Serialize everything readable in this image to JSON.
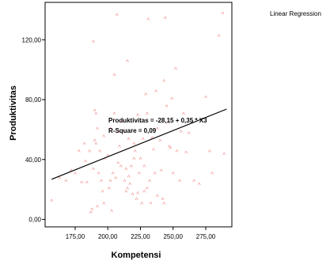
{
  "chart_data": {
    "type": "scatter",
    "xlabel": "Kompetensi",
    "ylabel": "Produktivitas",
    "legend": "Linear Regression",
    "xlim": [
      152,
      295
    ],
    "ylim": [
      -5,
      145
    ],
    "xticks": [
      175,
      200,
      225,
      250,
      275
    ],
    "xtick_labels": [
      "175,00",
      "200,00",
      "225,00",
      "250,00",
      "275,00"
    ],
    "yticks": [
      0,
      40,
      80,
      120
    ],
    "ytick_labels": [
      "0,00",
      "40,00",
      "80,00",
      "120,00"
    ],
    "regression": {
      "intercept": -28.15,
      "slope": 0.35,
      "x_range": [
        157,
        291
      ]
    },
    "annotation_line1": "Produktivitas = -28,15 + 0,35 * X3",
    "annotation_line2": "R-Square = 0,09",
    "point_marker": "^",
    "point_color": "#f08080",
    "points": [
      [
        157,
        12
      ],
      [
        163,
        27
      ],
      [
        168,
        25
      ],
      [
        172,
        32
      ],
      [
        175,
        30
      ],
      [
        178,
        45
      ],
      [
        180,
        24
      ],
      [
        182,
        50
      ],
      [
        183,
        38
      ],
      [
        184,
        24
      ],
      [
        186,
        45
      ],
      [
        187,
        4
      ],
      [
        188,
        6
      ],
      [
        189,
        33
      ],
      [
        189,
        118
      ],
      [
        190,
        72
      ],
      [
        190,
        52
      ],
      [
        191,
        50
      ],
      [
        191,
        70
      ],
      [
        192,
        60
      ],
      [
        192,
        8
      ],
      [
        193,
        30
      ],
      [
        194,
        45
      ],
      [
        195,
        25
      ],
      [
        196,
        18
      ],
      [
        197,
        55
      ],
      [
        197,
        10
      ],
      [
        198,
        40
      ],
      [
        200,
        42
      ],
      [
        201,
        20
      ],
      [
        202,
        25
      ],
      [
        202,
        60
      ],
      [
        203,
        5
      ],
      [
        204,
        30
      ],
      [
        205,
        70
      ],
      [
        205,
        96
      ],
      [
        206,
        27
      ],
      [
        207,
        136
      ],
      [
        208,
        37
      ],
      [
        208,
        58
      ],
      [
        209,
        48
      ],
      [
        210,
        35
      ],
      [
        211,
        65
      ],
      [
        212,
        58
      ],
      [
        213,
        25
      ],
      [
        214,
        18
      ],
      [
        214,
        33
      ],
      [
        215,
        20
      ],
      [
        215,
        105
      ],
      [
        216,
        28
      ],
      [
        216,
        53
      ],
      [
        217,
        23
      ],
      [
        218,
        35
      ],
      [
        219,
        16
      ],
      [
        220,
        40
      ],
      [
        220,
        50
      ],
      [
        221,
        45
      ],
      [
        222,
        13
      ],
      [
        223,
        17
      ],
      [
        223,
        69
      ],
      [
        224,
        30
      ],
      [
        225,
        40
      ],
      [
        226,
        10
      ],
      [
        227,
        53
      ],
      [
        228,
        18
      ],
      [
        228,
        35
      ],
      [
        229,
        83
      ],
      [
        230,
        20
      ],
      [
        230,
        70
      ],
      [
        231,
        133
      ],
      [
        232,
        25
      ],
      [
        233,
        10
      ],
      [
        234,
        54
      ],
      [
        235,
        46
      ],
      [
        236,
        30
      ],
      [
        237,
        85
      ],
      [
        238,
        15
      ],
      [
        238,
        60
      ],
      [
        240,
        52
      ],
      [
        241,
        32
      ],
      [
        242,
        13
      ],
      [
        243,
        10
      ],
      [
        243,
        92
      ],
      [
        244,
        134
      ],
      [
        245,
        75
      ],
      [
        246,
        64
      ],
      [
        247,
        48
      ],
      [
        248,
        47
      ],
      [
        249,
        80
      ],
      [
        250,
        30
      ],
      [
        252,
        100
      ],
      [
        253,
        45
      ],
      [
        255,
        25
      ],
      [
        256,
        58
      ],
      [
        258,
        70
      ],
      [
        260,
        44
      ],
      [
        262,
        57
      ],
      [
        266,
        25
      ],
      [
        270,
        23
      ],
      [
        275,
        81
      ],
      [
        278,
        45
      ],
      [
        280,
        30
      ],
      [
        285,
        122
      ],
      [
        288,
        137
      ],
      [
        289,
        43
      ]
    ]
  }
}
